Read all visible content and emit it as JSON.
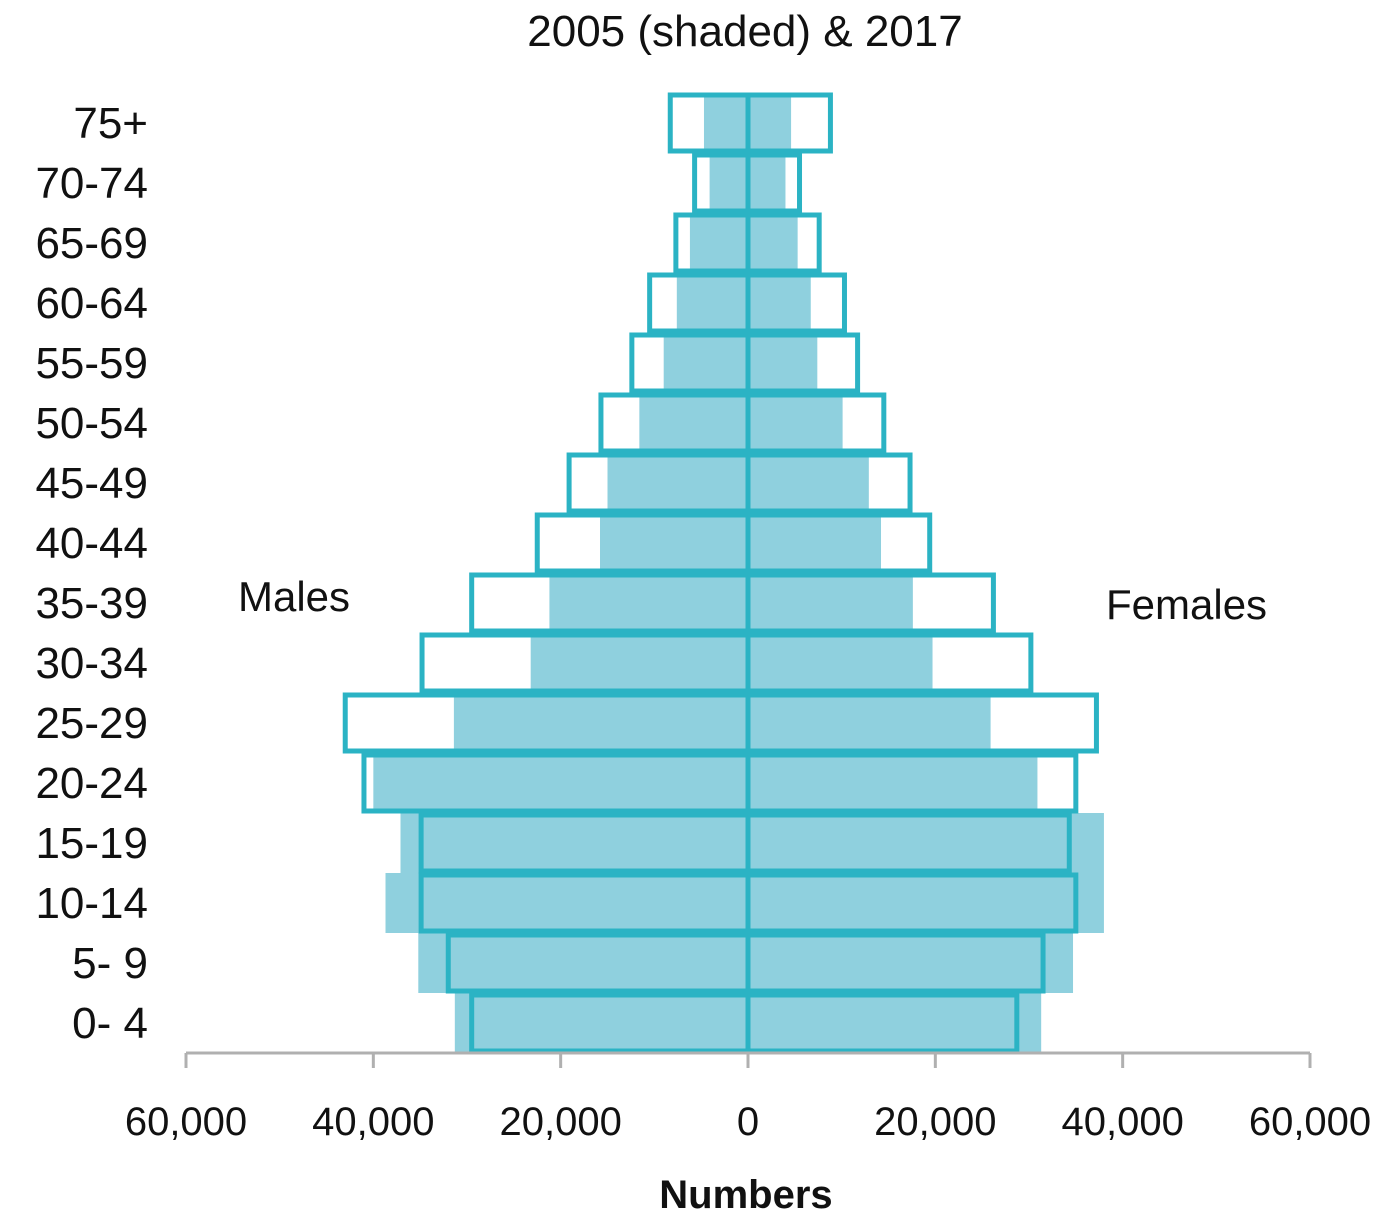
{
  "chart_data": {
    "type": "bar",
    "orientation": "horizontal",
    "subtype": "population-pyramid",
    "title": "2005 (shaded) & 2017",
    "xlabel": "Numbers",
    "ylabel": "",
    "xlim": [
      -60000,
      60000
    ],
    "x_ticks": [
      -60000,
      -40000,
      -20000,
      0,
      20000,
      40000,
      60000
    ],
    "x_tick_labels": [
      "60,000",
      "40,000",
      "20,000",
      "0",
      "20,000",
      "40,000",
      "60,000"
    ],
    "categories": [
      "75+",
      "70-74",
      "65-69",
      "60-64",
      "55-59",
      "50-54",
      "45-49",
      "40-44",
      "35-39",
      "30-34",
      "25-29",
      "20-24",
      "15-19",
      "10-14",
      "5- 9",
      "0- 4"
    ],
    "annotations": {
      "left": "Males",
      "right": "Females"
    },
    "series": [
      {
        "style": "shaded",
        "males": [
          4700,
          4100,
          6200,
          7600,
          9000,
          11600,
          15000,
          15800,
          21200,
          23200,
          31400,
          40000,
          37100,
          38700,
          35200,
          31300
        ],
        "females": [
          4600,
          4000,
          5300,
          6700,
          7400,
          10100,
          12900,
          14200,
          17600,
          19700,
          25900,
          30900,
          38000,
          38000,
          34700,
          31300
        ]
      },
      {
        "style": "outline",
        "males": [
          8300,
          5700,
          7700,
          10500,
          12400,
          15700,
          19100,
          22500,
          29500,
          34800,
          43000,
          41000,
          34900,
          34900,
          32000,
          29500
        ],
        "females": [
          8800,
          5500,
          7600,
          10300,
          11700,
          14500,
          17300,
          19400,
          26200,
          30200,
          37200,
          35000,
          34300,
          35000,
          31500,
          28700
        ]
      }
    ],
    "colors": {
      "shaded": "#8fd0de",
      "outline": "#2bb3c4",
      "axis": "#b0b0b0"
    }
  }
}
